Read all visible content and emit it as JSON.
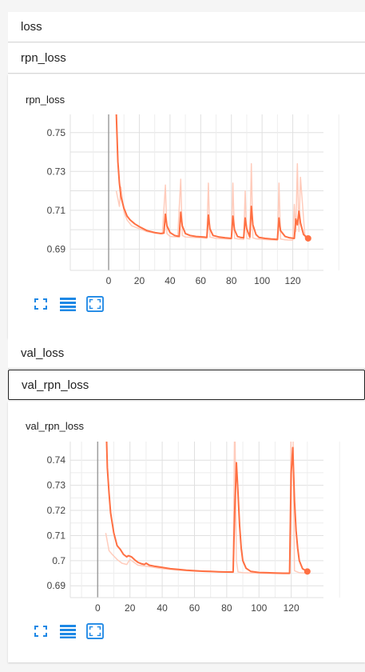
{
  "sections": {
    "loss": "loss",
    "rpn_loss": "rpn_loss",
    "val_loss": "val_loss",
    "val_rpn_loss": "val_rpn_loss"
  },
  "icons": [
    "fit-domain-icon",
    "toggle-log-scale-icon",
    "fit-data-icon"
  ],
  "colors": {
    "series": "#ff7043",
    "raw": "#ffccbc",
    "accent": "#1e88e5"
  },
  "chart_data": [
    {
      "type": "line",
      "title": "rpn_loss",
      "xlim": [
        -25,
        140
      ],
      "ylim": [
        0.679,
        0.7594
      ],
      "xticks": [
        0,
        20,
        40,
        60,
        80,
        100,
        120
      ],
      "yticks": [
        0.69,
        0.71,
        0.73,
        0.75
      ],
      "yticks_minor": [
        0.69,
        0.7,
        0.71,
        0.72,
        0.73,
        0.74,
        0.75
      ],
      "series": [
        {
          "smoothed": true,
          "x": [
            5,
            6,
            7,
            8,
            10,
            12,
            14,
            17,
            20,
            25,
            30,
            34,
            36,
            37,
            38,
            40,
            43,
            46,
            47,
            48,
            50,
            53,
            57,
            62,
            64,
            65,
            66,
            68,
            72,
            76,
            80,
            81,
            82,
            84,
            86,
            88,
            89,
            90,
            92,
            93,
            94,
            96,
            98,
            102,
            106,
            110,
            111,
            112,
            115,
            118,
            121,
            122,
            123,
            124,
            125,
            127,
            130
          ],
          "y": [
            0.76,
            0.735,
            0.724,
            0.717,
            0.711,
            0.707,
            0.705,
            0.703,
            0.7015,
            0.6995,
            0.6985,
            0.698,
            0.6982,
            0.708,
            0.702,
            0.6985,
            0.697,
            0.6965,
            0.709,
            0.702,
            0.698,
            0.697,
            0.6965,
            0.6962,
            0.696,
            0.7075,
            0.7005,
            0.697,
            0.6962,
            0.6958,
            0.6955,
            0.707,
            0.7,
            0.6965,
            0.696,
            0.6958,
            0.706,
            0.7005,
            0.6962,
            0.712,
            0.7025,
            0.6975,
            0.696,
            0.6955,
            0.6952,
            0.695,
            0.706,
            0.6995,
            0.6965,
            0.6958,
            0.6955,
            0.7055,
            0.7025,
            0.7095,
            0.7035,
            0.6975,
            0.6955
          ],
          "end_marker": [
            130,
            0.6955
          ]
        },
        {
          "smoothed": false,
          "x": [
            5,
            7,
            8,
            10,
            12,
            15,
            20,
            25,
            30,
            35,
            37,
            38,
            40,
            45,
            47,
            48,
            50,
            55,
            60,
            64,
            65,
            66,
            70,
            75,
            80,
            81,
            82,
            85,
            88,
            89,
            90,
            92,
            93,
            94,
            96,
            100,
            105,
            110,
            111,
            112,
            115,
            120,
            121,
            122,
            123,
            124,
            125,
            128,
            130
          ],
          "y": [
            0.72,
            0.712,
            0.722,
            0.709,
            0.705,
            0.702,
            0.7005,
            0.699,
            0.6982,
            0.6978,
            0.723,
            0.698,
            0.6965,
            0.6962,
            0.726,
            0.697,
            0.6962,
            0.696,
            0.6958,
            0.6956,
            0.724,
            0.6962,
            0.6955,
            0.6953,
            0.6952,
            0.724,
            0.6955,
            0.6952,
            0.695,
            0.72,
            0.6955,
            0.6952,
            0.734,
            0.6958,
            0.6953,
            0.695,
            0.6948,
            0.6946,
            0.724,
            0.6952,
            0.6948,
            0.6946,
            0.713,
            0.699,
            0.734,
            0.699,
            0.727,
            0.696,
            0.6952
          ]
        }
      ]
    },
    {
      "type": "line",
      "title": "val_rpn_loss",
      "xlim": [
        -17,
        140
      ],
      "ylim": [
        0.6853,
        0.7474
      ],
      "xticks": [
        0,
        20,
        40,
        60,
        80,
        100,
        120
      ],
      "yticks": [
        0.69,
        0.7,
        0.71,
        0.72,
        0.73,
        0.74
      ],
      "series": [
        {
          "smoothed": true,
          "x": [
            5,
            6,
            7,
            8,
            10,
            12,
            14,
            16,
            18,
            19,
            21,
            23,
            25,
            27,
            29,
            30,
            32,
            35,
            40,
            45,
            50,
            55,
            60,
            65,
            70,
            75,
            80,
            84,
            85,
            86,
            87,
            88,
            89,
            90,
            92,
            95,
            100,
            105,
            110,
            115,
            119,
            120,
            121,
            122,
            123,
            124,
            125,
            127,
            130
          ],
          "y": [
            0.76,
            0.737,
            0.727,
            0.719,
            0.711,
            0.706,
            0.7045,
            0.7025,
            0.7015,
            0.702,
            0.7015,
            0.7003,
            0.6993,
            0.6988,
            0.6985,
            0.699,
            0.6982,
            0.6978,
            0.6973,
            0.6968,
            0.6965,
            0.6962,
            0.696,
            0.6958,
            0.6957,
            0.6956,
            0.6955,
            0.6955,
            0.72,
            0.739,
            0.727,
            0.714,
            0.705,
            0.7,
            0.697,
            0.6957,
            0.6953,
            0.6952,
            0.6951,
            0.695,
            0.695,
            0.735,
            0.745,
            0.724,
            0.712,
            0.705,
            0.7,
            0.6968,
            0.6957
          ]
        },
        {
          "smoothed": false,
          "x": [
            5,
            7,
            9,
            12,
            15,
            18,
            20,
            25,
            30,
            40,
            50,
            60,
            70,
            80,
            84,
            85,
            86,
            87,
            90,
            95,
            100,
            110,
            119,
            120,
            121,
            122,
            125,
            130
          ],
          "y": [
            0.711,
            0.704,
            0.7025,
            0.7005,
            0.699,
            0.6985,
            0.7005,
            0.6982,
            0.6978,
            0.6968,
            0.6962,
            0.6958,
            0.6956,
            0.6954,
            0.6953,
            0.76,
            0.7,
            0.6955,
            0.6952,
            0.6951,
            0.695,
            0.6949,
            0.6948,
            0.76,
            0.76,
            0.696,
            0.6952,
            0.695
          ],
          "end_marker": [
            130,
            0.6957
          ]
        }
      ]
    }
  ]
}
